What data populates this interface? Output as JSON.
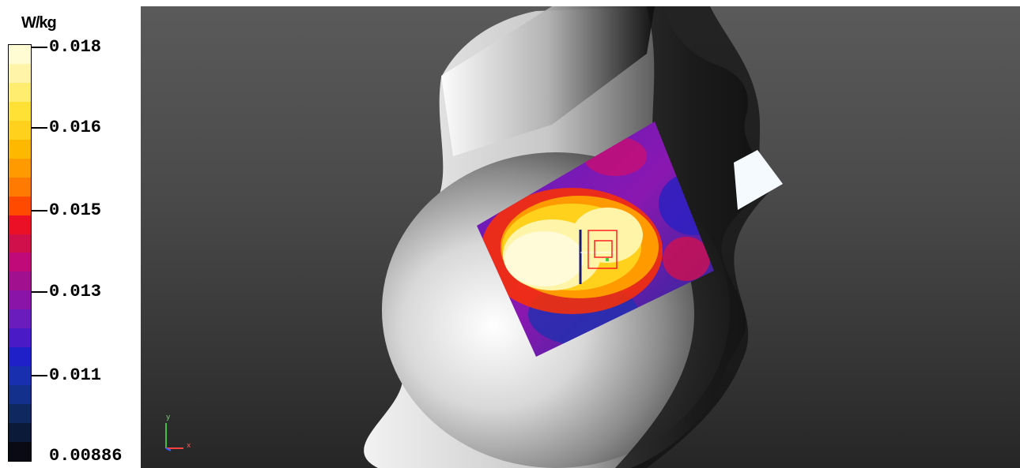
{
  "legend": {
    "unit": "W/kg",
    "tick_labels": [
      "0.018",
      "0.016",
      "0.015",
      "0.013",
      "0.011",
      "0.00886"
    ],
    "colors": [
      "#fffbd2",
      "#fff4a8",
      "#ffed6f",
      "#ffe135",
      "#ffd11c",
      "#ffb800",
      "#ff9a00",
      "#ff7a00",
      "#ff4a00",
      "#ec1026",
      "#d0104a",
      "#c00a7a",
      "#a0108f",
      "#8a14a8",
      "#6a1cbc",
      "#4a1ac6",
      "#2020c8",
      "#1830b0",
      "#12308c",
      "#102860",
      "#0a1a38",
      "#0a0a14"
    ]
  },
  "viewport": {
    "axes": {
      "y_label": "y",
      "x_label": "x"
    }
  }
}
